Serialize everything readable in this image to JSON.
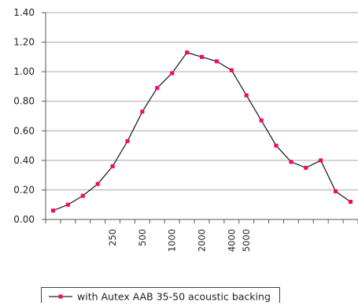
{
  "chart_data": {
    "type": "line",
    "title": "",
    "xlabel": "",
    "ylabel": "",
    "ylim": [
      0,
      1.4
    ],
    "y_ticks": [
      "0.00",
      "0.20",
      "0.40",
      "0.60",
      "0.80",
      "1.00",
      "1.20",
      "1.40"
    ],
    "x_tick_labels": [
      {
        "index": 4,
        "label": "250"
      },
      {
        "index": 6,
        "label": "500"
      },
      {
        "index": 8,
        "label": "1000"
      },
      {
        "index": 10,
        "label": "2000"
      },
      {
        "index": 12,
        "label": "4000"
      },
      {
        "index": 13,
        "label": "5000"
      }
    ],
    "grid": "horizontal",
    "legend_position": "bottom",
    "series": [
      {
        "name": "with Autex AAB 35-50 acoustic backing",
        "color": "#ff0066",
        "line_color": "#222222",
        "values": [
          0.06,
          0.1,
          0.16,
          0.24,
          0.36,
          0.53,
          0.73,
          0.89,
          0.99,
          1.13,
          1.1,
          1.07,
          1.01,
          0.84,
          0.67,
          0.5,
          0.39,
          0.35,
          0.4,
          0.19,
          0.12
        ]
      }
    ]
  }
}
